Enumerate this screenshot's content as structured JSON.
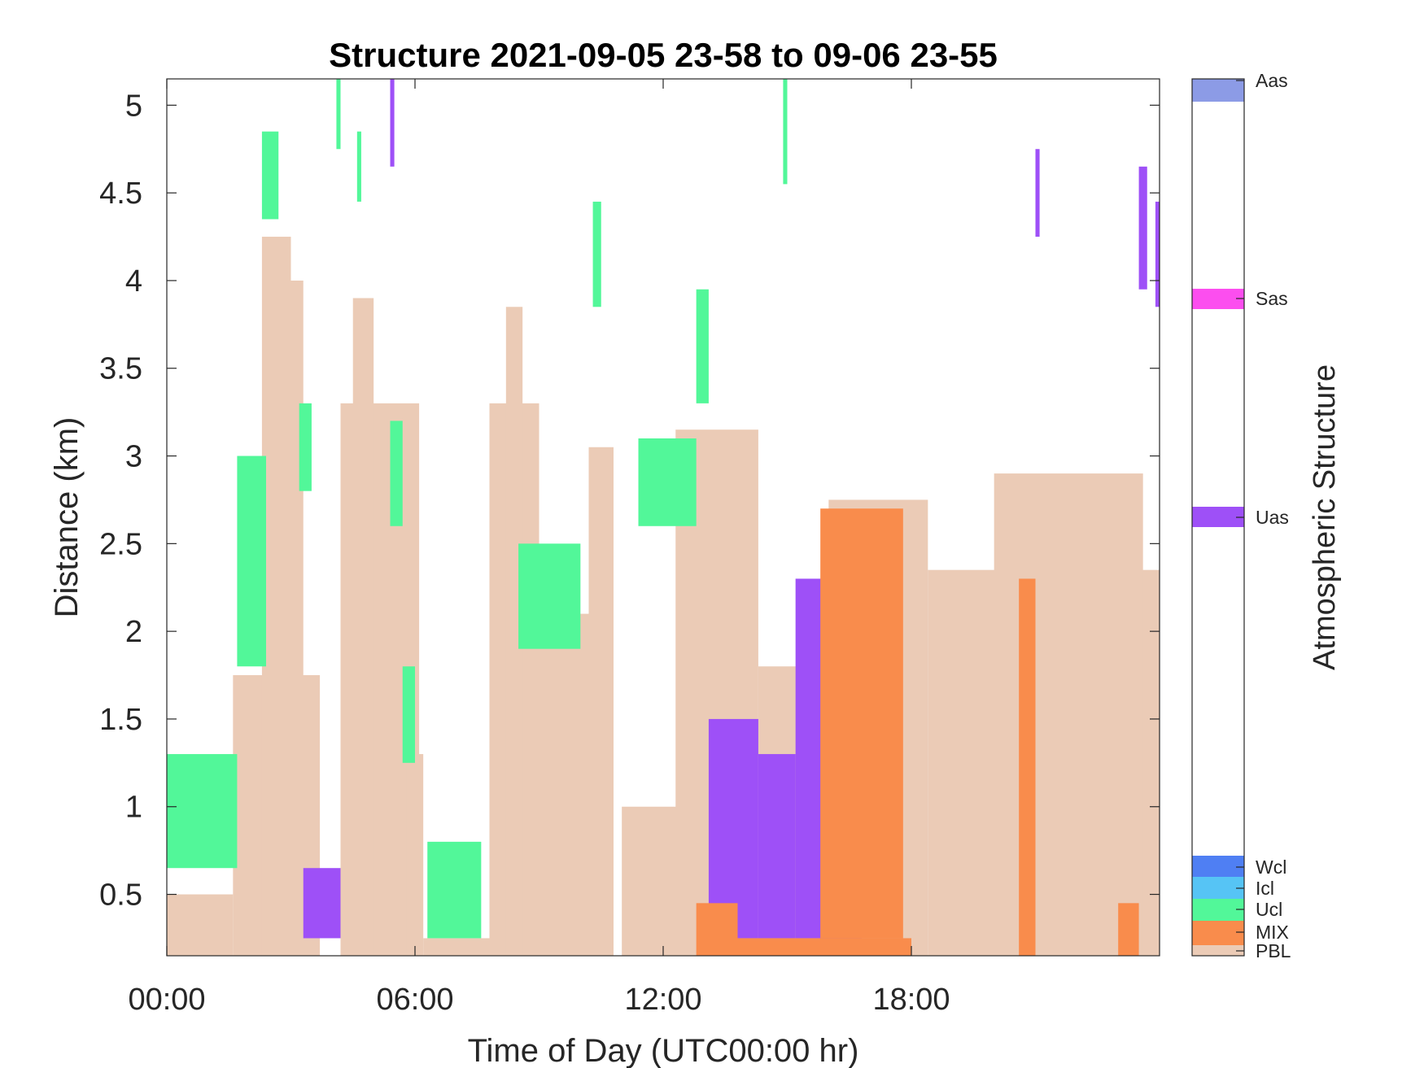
{
  "chart_data": {
    "type": "heatmap",
    "title": "Structure 2021-09-05 23-58 to 09-06 23-55",
    "xlabel": "Time of Day (UTC00:00 hr)",
    "ylabel": "Distance (km)",
    "xlim": [
      0,
      24
    ],
    "ylim": [
      0.15,
      5.15
    ],
    "x_ticks": [
      0,
      6,
      12,
      18
    ],
    "x_tick_labels": [
      "00:00",
      "06:00",
      "12:00",
      "18:00"
    ],
    "y_ticks": [
      0.5,
      1,
      1.5,
      2,
      2.5,
      3,
      3.5,
      4,
      4.5,
      5
    ],
    "y_tick_labels": [
      "0.5",
      "1",
      "1.5",
      "2",
      "2.5",
      "3",
      "3.5",
      "4",
      "4.5",
      "5"
    ],
    "colorbar": {
      "label": "Atmospheric Structure",
      "categories": [
        {
          "code": "PBL",
          "color": "#EBCBB6"
        },
        {
          "code": "MIX",
          "color": "#F98C4C"
        },
        {
          "code": "Ucl",
          "color": "#52F799"
        },
        {
          "code": "Icl",
          "color": "#56C4F5"
        },
        {
          "code": "Wcl",
          "color": "#4F7FF3"
        },
        {
          "code": "Uas",
          "color": "#9E50F7"
        },
        {
          "code": "Sas",
          "color": "#FC4EEF"
        },
        {
          "code": "Aas",
          "color": "#8C9BE6"
        }
      ],
      "tick_labels": [
        "Aas",
        "Sas",
        "Uas",
        "Wcl",
        "Icl",
        "Ucl",
        "MIX",
        "PBL"
      ]
    },
    "grid": false,
    "legend_position": "colorbar-right",
    "regions": [
      {
        "cat": "PBL",
        "x": [
          1.6,
          3.7
        ],
        "y": [
          0.15,
          1.75
        ]
      },
      {
        "cat": "PBL",
        "x": [
          2.3,
          3.0
        ],
        "y": [
          0.15,
          4.25
        ]
      },
      {
        "cat": "PBL",
        "x": [
          3.0,
          3.3
        ],
        "y": [
          0.15,
          4.0
        ]
      },
      {
        "cat": "PBL",
        "x": [
          4.2,
          6.1
        ],
        "y": [
          0.15,
          3.3
        ]
      },
      {
        "cat": "PBL",
        "x": [
          4.5,
          5.0
        ],
        "y": [
          0.15,
          3.9
        ]
      },
      {
        "cat": "PBL",
        "x": [
          5.8,
          6.2
        ],
        "y": [
          0.15,
          1.3
        ]
      },
      {
        "cat": "PBL",
        "x": [
          7.8,
          9.0
        ],
        "y": [
          0.15,
          3.3
        ]
      },
      {
        "cat": "PBL",
        "x": [
          8.2,
          8.6
        ],
        "y": [
          0.15,
          3.85
        ]
      },
      {
        "cat": "PBL",
        "x": [
          9.0,
          10.4
        ],
        "y": [
          0.15,
          2.1
        ]
      },
      {
        "cat": "PBL",
        "x": [
          10.2,
          10.8
        ],
        "y": [
          0.15,
          3.05
        ]
      },
      {
        "cat": "PBL",
        "x": [
          11.0,
          13.0
        ],
        "y": [
          0.15,
          1.0
        ]
      },
      {
        "cat": "PBL",
        "x": [
          12.3,
          14.3
        ],
        "y": [
          0.15,
          3.15
        ]
      },
      {
        "cat": "PBL",
        "x": [
          14.3,
          16.0
        ],
        "y": [
          0.15,
          1.8
        ]
      },
      {
        "cat": "PBL",
        "x": [
          16.0,
          18.4
        ],
        "y": [
          0.15,
          2.75
        ]
      },
      {
        "cat": "PBL",
        "x": [
          18.4,
          24.0
        ],
        "y": [
          0.15,
          2.35
        ]
      },
      {
        "cat": "PBL",
        "x": [
          20.0,
          23.6
        ],
        "y": [
          0.15,
          2.9
        ]
      },
      {
        "cat": "PBL",
        "x": [
          0,
          1.6
        ],
        "y": [
          0.15,
          0.5
        ]
      },
      {
        "cat": "PBL",
        "x": [
          6.2,
          7.8
        ],
        "y": [
          0.15,
          0.25
        ]
      },
      {
        "cat": "Ucl",
        "x": [
          0,
          1.7
        ],
        "y": [
          0.65,
          1.3
        ]
      },
      {
        "cat": "Ucl",
        "x": [
          1.7,
          2.4
        ],
        "y": [
          1.8,
          3.0
        ]
      },
      {
        "cat": "Ucl",
        "x": [
          2.3,
          2.7
        ],
        "y": [
          4.35,
          4.85
        ]
      },
      {
        "cat": "Ucl",
        "x": [
          3.2,
          3.5
        ],
        "y": [
          2.8,
          3.3
        ]
      },
      {
        "cat": "Ucl",
        "x": [
          5.4,
          5.7
        ],
        "y": [
          2.6,
          3.2
        ]
      },
      {
        "cat": "Ucl",
        "x": [
          5.7,
          6.0
        ],
        "y": [
          1.25,
          1.8
        ]
      },
      {
        "cat": "Ucl",
        "x": [
          6.3,
          7.6
        ],
        "y": [
          0.25,
          0.8
        ]
      },
      {
        "cat": "Ucl",
        "x": [
          8.5,
          10.0
        ],
        "y": [
          1.9,
          2.5
        ]
      },
      {
        "cat": "Ucl",
        "x": [
          11.4,
          12.8
        ],
        "y": [
          2.6,
          3.1
        ]
      },
      {
        "cat": "Ucl",
        "x": [
          12.8,
          13.1
        ],
        "y": [
          3.3,
          3.95
        ]
      },
      {
        "cat": "Uas",
        "x": [
          13.1,
          14.3
        ],
        "y": [
          0.25,
          1.5
        ]
      },
      {
        "cat": "Uas",
        "x": [
          14.3,
          15.2
        ],
        "y": [
          0.25,
          1.3
        ]
      },
      {
        "cat": "Uas",
        "x": [
          15.2,
          16.8
        ],
        "y": [
          0.25,
          2.3
        ]
      },
      {
        "cat": "Uas",
        "x": [
          3.3,
          4.2
        ],
        "y": [
          0.25,
          0.65
        ]
      },
      {
        "cat": "MIX",
        "x": [
          12.8,
          13.8
        ],
        "y": [
          0.15,
          0.45
        ]
      },
      {
        "cat": "MIX",
        "x": [
          13.8,
          18.0
        ],
        "y": [
          0.15,
          0.25
        ]
      },
      {
        "cat": "MIX",
        "x": [
          15.8,
          17.8
        ],
        "y": [
          0.25,
          2.7
        ]
      },
      {
        "cat": "MIX",
        "x": [
          20.6,
          21.0
        ],
        "y": [
          0.15,
          2.3
        ]
      },
      {
        "cat": "MIX",
        "x": [
          23.0,
          23.5
        ],
        "y": [
          0.15,
          0.45
        ]
      },
      {
        "cat": "Ucl",
        "x": [
          4.1,
          4.2
        ],
        "y": [
          4.75,
          5.15
        ]
      },
      {
        "cat": "Ucl",
        "x": [
          4.6,
          4.7
        ],
        "y": [
          4.45,
          4.85
        ]
      },
      {
        "cat": "Uas",
        "x": [
          5.4,
          5.5
        ],
        "y": [
          4.65,
          5.15
        ]
      },
      {
        "cat": "Ucl",
        "x": [
          10.3,
          10.5
        ],
        "y": [
          3.85,
          4.45
        ]
      },
      {
        "cat": "Ucl",
        "x": [
          14.9,
          15.0
        ],
        "y": [
          4.55,
          5.15
        ]
      },
      {
        "cat": "Uas",
        "x": [
          21.0,
          21.1
        ],
        "y": [
          4.25,
          4.75
        ]
      },
      {
        "cat": "Uas",
        "x": [
          23.5,
          23.7
        ],
        "y": [
          3.95,
          4.65
        ]
      },
      {
        "cat": "Uas",
        "x": [
          23.9,
          24.0
        ],
        "y": [
          3.85,
          4.45
        ]
      }
    ]
  }
}
